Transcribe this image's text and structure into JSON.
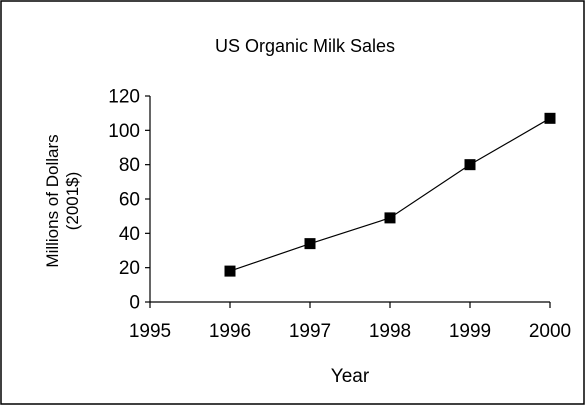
{
  "chart_data": {
    "type": "line",
    "title": "US Organic Milk Sales",
    "xlabel": "Year",
    "ylabel_lines": [
      "Millions of Dollars",
      "(2001$)"
    ],
    "x": [
      1996,
      1997,
      1998,
      1999,
      2000
    ],
    "series": [
      {
        "values": [
          18,
          34,
          49,
          80,
          107
        ]
      }
    ],
    "xlim": [
      1995,
      2000
    ],
    "ylim": [
      0,
      120
    ],
    "xticks": [
      1995,
      1996,
      1997,
      1998,
      1999,
      2000
    ],
    "yticks": [
      0,
      20,
      40,
      60,
      80,
      100,
      120
    ],
    "grid": false,
    "legend": "none",
    "colors": {
      "line": "#000000",
      "marker": "#000000",
      "axis": "#000000",
      "border": "#000000"
    }
  }
}
